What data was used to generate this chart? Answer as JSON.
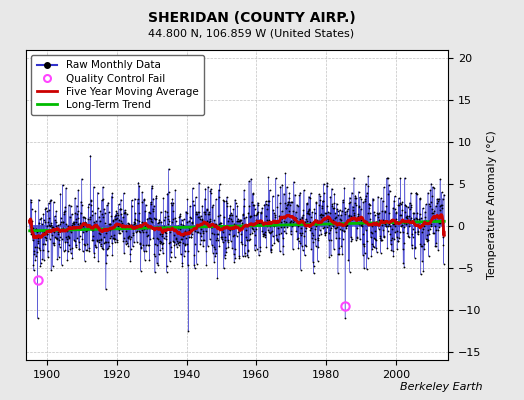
{
  "title": "SHERIDAN (COUNTY AIRP.)",
  "subtitle": "44.800 N, 106.859 W (United States)",
  "ylabel": "Temperature Anomaly (°C)",
  "watermark": "Berkeley Earth",
  "start_year": 1895,
  "end_year": 2013,
  "ylim": [
    -16,
    21
  ],
  "yticks": [
    -15,
    -10,
    -5,
    0,
    5,
    10,
    15,
    20
  ],
  "bg_color": "#e8e8e8",
  "plot_bg_color": "#ffffff",
  "line_color": "#3333cc",
  "marker_color": "#000000",
  "ma_color": "#cc0000",
  "trend_color": "#00bb00",
  "qc_fail_color": "#ff44ff",
  "qc_fail_points": [
    [
      1897.25,
      -6.5
    ],
    [
      1985.5,
      -9.5
    ]
  ],
  "trend_slope": 0.0095,
  "trend_intercept_year": 1895,
  "trend_intercept_val": -0.58,
  "xticks": [
    1900,
    1920,
    1940,
    1960,
    1980,
    2000
  ],
  "title_fontsize": 10,
  "subtitle_fontsize": 8,
  "ylabel_fontsize": 8,
  "tick_fontsize": 8,
  "legend_fontsize": 7.5,
  "watermark_fontsize": 8
}
